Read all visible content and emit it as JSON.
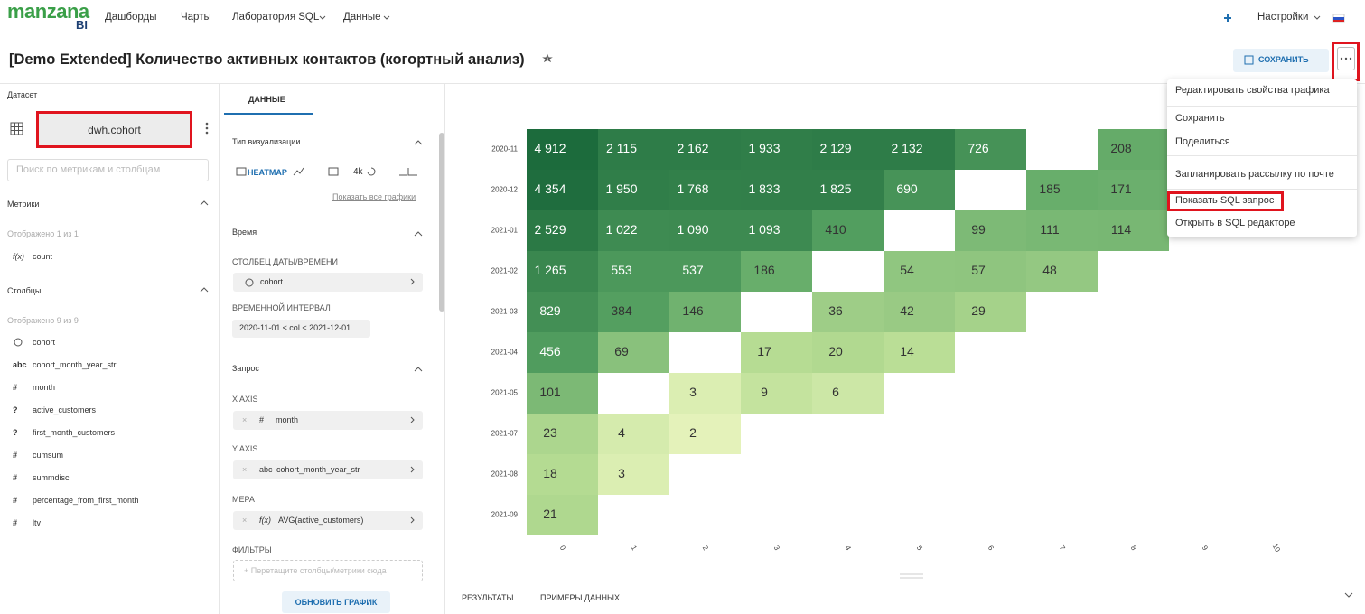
{
  "nav": {
    "logo": "manzana",
    "logo_sub": "BI",
    "items": [
      "Дашборды",
      "Чарты",
      "Лаборатория SQL",
      "Данные"
    ],
    "settings": "Настройки"
  },
  "header": {
    "title": "[Demo Extended] Количество активных контактов (когортный анализ)",
    "save": "СОХРАНИТЬ"
  },
  "dataset": {
    "label": "Датасет",
    "name": "dwh.cohort",
    "search_placeholder": "Поиск по метрикам и столбцам",
    "metrics": {
      "title": "Метрики",
      "shown": "Отображено 1 из 1",
      "items": [
        {
          "type": "f(x)",
          "name": "count"
        }
      ]
    },
    "columns": {
      "title": "Столбцы",
      "shown": "Отображено 9 из 9",
      "items": [
        {
          "name": "cohort"
        },
        {
          "type": "abc",
          "name": "cohort_month_year_str"
        },
        {
          "type": "#",
          "name": "month"
        },
        {
          "type": "?",
          "name": "active_customers"
        },
        {
          "type": "?",
          "name": "first_month_customers"
        },
        {
          "type": "#",
          "name": "cumsum"
        },
        {
          "type": "#",
          "name": "summdisc"
        },
        {
          "type": "#",
          "name": "percentage_from_first_month"
        },
        {
          "type": "#",
          "name": "ltv"
        }
      ]
    }
  },
  "panel": {
    "tab": "ДАННЫЕ",
    "viz_title": "Тип визуализации",
    "viz_selected": "HEATMAP",
    "viz_4k": "4k",
    "show_all": "Показать все графики",
    "time_title": "Время",
    "datetime_col_label": "СТОЛБЕЦ ДАТЫ/ВРЕМЕНИ",
    "datetime_col": "cohort",
    "interval_label": "ВРЕМЕННОЙ ИНТЕРВАЛ",
    "interval": "2020-11-01 ≤ col < 2021-12-01",
    "query_title": "Запрос",
    "x_axis_label": "X AXIS",
    "x_axis": {
      "type": "#",
      "name": "month"
    },
    "y_axis_label": "Y AXIS",
    "y_axis": {
      "type": "abc",
      "name": "cohort_month_year_str"
    },
    "metric_label": "МЕРА",
    "metric": {
      "type": "f(x)",
      "name": "AVG(active_customers)"
    },
    "filters_label": "ФИЛЬТРЫ",
    "filters_placeholder": "+ Перетащите столбцы/метрики сюда",
    "update": "ОБНОВИТЬ ГРАФИК"
  },
  "bottom_tabs": [
    "РЕЗУЛЬТАТЫ",
    "ПРИМЕРЫ ДАННЫХ"
  ],
  "menu": {
    "items": [
      "Редактировать свойства графика",
      "Сохранить",
      "Поделиться",
      "Запланировать рассылку по почте",
      "Показать SQL запрос",
      "Открыть в SQL редакторе"
    ]
  },
  "chart_data": {
    "type": "heatmap",
    "x": [
      0,
      1,
      2,
      3,
      4,
      5,
      6,
      7,
      8,
      9,
      10
    ],
    "y": [
      "2020-11",
      "2020-12",
      "2021-01",
      "2021-02",
      "2021-03",
      "2021-04",
      "2021-05",
      "2021-07",
      "2021-08",
      "2021-09"
    ],
    "values": [
      [
        4912,
        2115,
        2162,
        1933,
        2129,
        2132,
        726,
        null,
        208,
        null,
        null
      ],
      [
        4354,
        1950,
        1768,
        1833,
        1825,
        690,
        null,
        185,
        171,
        null,
        null
      ],
      [
        2529,
        1022,
        1090,
        1093,
        410,
        null,
        99,
        111,
        114,
        null,
        null
      ],
      [
        1265,
        553,
        537,
        186,
        null,
        54,
        57,
        48,
        null,
        null,
        null
      ],
      [
        829,
        384,
        146,
        null,
        36,
        42,
        29,
        null,
        null,
        null,
        null
      ],
      [
        456,
        69,
        null,
        17,
        20,
        14,
        null,
        null,
        null,
        null,
        null
      ],
      [
        101,
        null,
        3,
        9,
        6,
        null,
        null,
        null,
        null,
        null,
        null
      ],
      [
        23,
        4,
        2,
        null,
        null,
        null,
        null,
        null,
        null,
        null,
        null
      ],
      [
        18,
        3,
        null,
        null,
        null,
        null,
        null,
        null,
        null,
        null,
        null
      ],
      [
        21,
        null,
        null,
        null,
        null,
        null,
        null,
        null,
        null,
        null,
        null
      ]
    ],
    "value_labels": [
      [
        "4 912",
        "2 115",
        "2 162",
        "1 933",
        "2 129",
        "2 132",
        "726",
        null,
        "208",
        null,
        null
      ],
      [
        "4 354",
        "1 950",
        "1 768",
        "1 833",
        "1 825",
        "690",
        null,
        "185",
        "171",
        null,
        null
      ],
      [
        "2 529",
        "1 022",
        "1 090",
        "1 093",
        "410",
        null,
        "99",
        "111",
        "114",
        null,
        null
      ],
      [
        "1 265",
        "553",
        "537",
        "186",
        null,
        "54",
        "57",
        "48",
        null,
        null,
        null
      ],
      [
        "829",
        "384",
        "146",
        null,
        "36",
        "42",
        "29",
        null,
        null,
        null,
        null
      ],
      [
        "456",
        "69",
        null,
        "17",
        "20",
        "14",
        null,
        null,
        null,
        null,
        null
      ],
      [
        "101",
        null,
        "3",
        "9",
        "6",
        null,
        null,
        null,
        null,
        null,
        null
      ],
      [
        "23",
        "4",
        "2",
        null,
        null,
        null,
        null,
        null,
        null,
        null,
        null
      ],
      [
        "18",
        "3",
        null,
        null,
        null,
        null,
        null,
        null,
        null,
        null,
        null
      ],
      [
        "21",
        null,
        null,
        null,
        null,
        null,
        null,
        null,
        null,
        null,
        null
      ]
    ],
    "colors": [
      "#f3f9c6",
      "#b6dc93",
      "#5aa564",
      "#1c6b3c"
    ]
  }
}
